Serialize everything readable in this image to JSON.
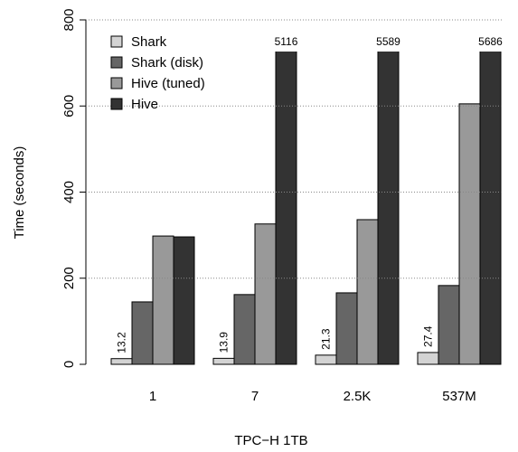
{
  "chart_data": {
    "type": "bar",
    "x_label": "TPC−H 1TB",
    "y_label": "Time (seconds)",
    "categories": [
      "1",
      "7",
      "2.5K",
      "537M"
    ],
    "series": [
      {
        "name": "Shark",
        "color": "#d3d3d3",
        "values": [
          13.2,
          13.9,
          21.3,
          27.4
        ],
        "value_labels": [
          "13.2",
          "13.9",
          "21.3",
          "27.4"
        ]
      },
      {
        "name": "Shark (disk)",
        "color": "#666666",
        "values": [
          145,
          162,
          166,
          183
        ]
      },
      {
        "name": "Hive (tuned)",
        "color": "#999999",
        "values": [
          298,
          326,
          336,
          605
        ]
      },
      {
        "name": "Hive",
        "color": "#333333",
        "values": [
          296,
          5116,
          5589,
          5686
        ],
        "value_labels": [
          null,
          "5116",
          "5589",
          "5686"
        ]
      }
    ],
    "ylim": [
      0,
      800
    ],
    "yticks": [
      0,
      200,
      400,
      600,
      800
    ],
    "grid": true,
    "legend": "top-left"
  }
}
